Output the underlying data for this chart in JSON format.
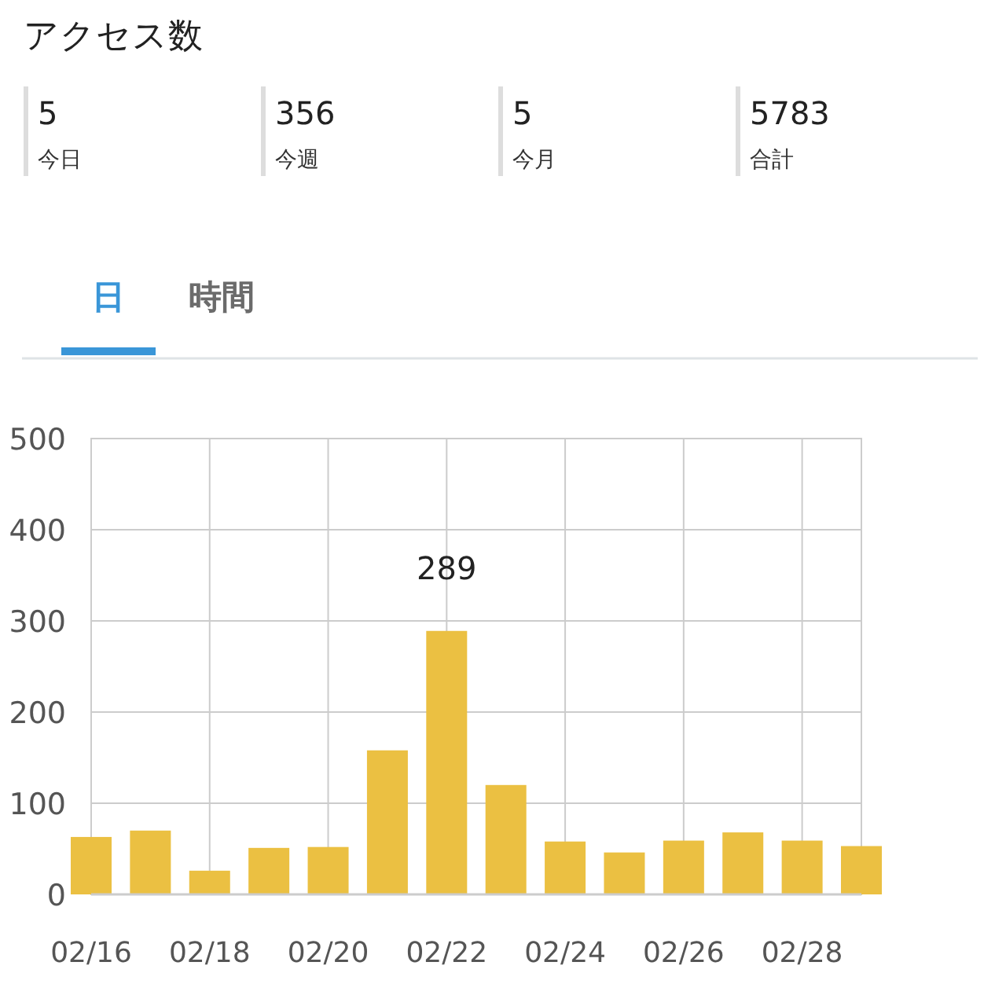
{
  "chart_data": [
    {
      "type": "other",
      "title": "アクセス数",
      "categories": [
        "今日",
        "今週",
        "今月",
        "合計"
      ],
      "values": [
        5,
        356,
        5,
        5783
      ],
      "data_labels": true
    },
    {
      "type": "bar",
      "annotations": [
        "日",
        "時間"
      ],
      "categories": [
        "02/16",
        null,
        "02/18",
        null,
        "02/20",
        null,
        "02/22",
        null,
        "02/24",
        null,
        "02/26",
        null,
        "02/28",
        null
      ],
      "values": [
        63,
        70,
        26,
        51,
        52,
        158,
        289,
        120,
        58,
        46,
        59,
        68,
        59,
        53
      ],
      "value_labels": [
        null,
        null,
        null,
        null,
        null,
        null,
        "289",
        null,
        null,
        null,
        null,
        null,
        null,
        null
      ],
      "color": "#ebc042",
      "ylim": [
        0,
        500
      ],
      "yticks": [
        0,
        100,
        200,
        300,
        400,
        500
      ],
      "grid": true
    }
  ]
}
